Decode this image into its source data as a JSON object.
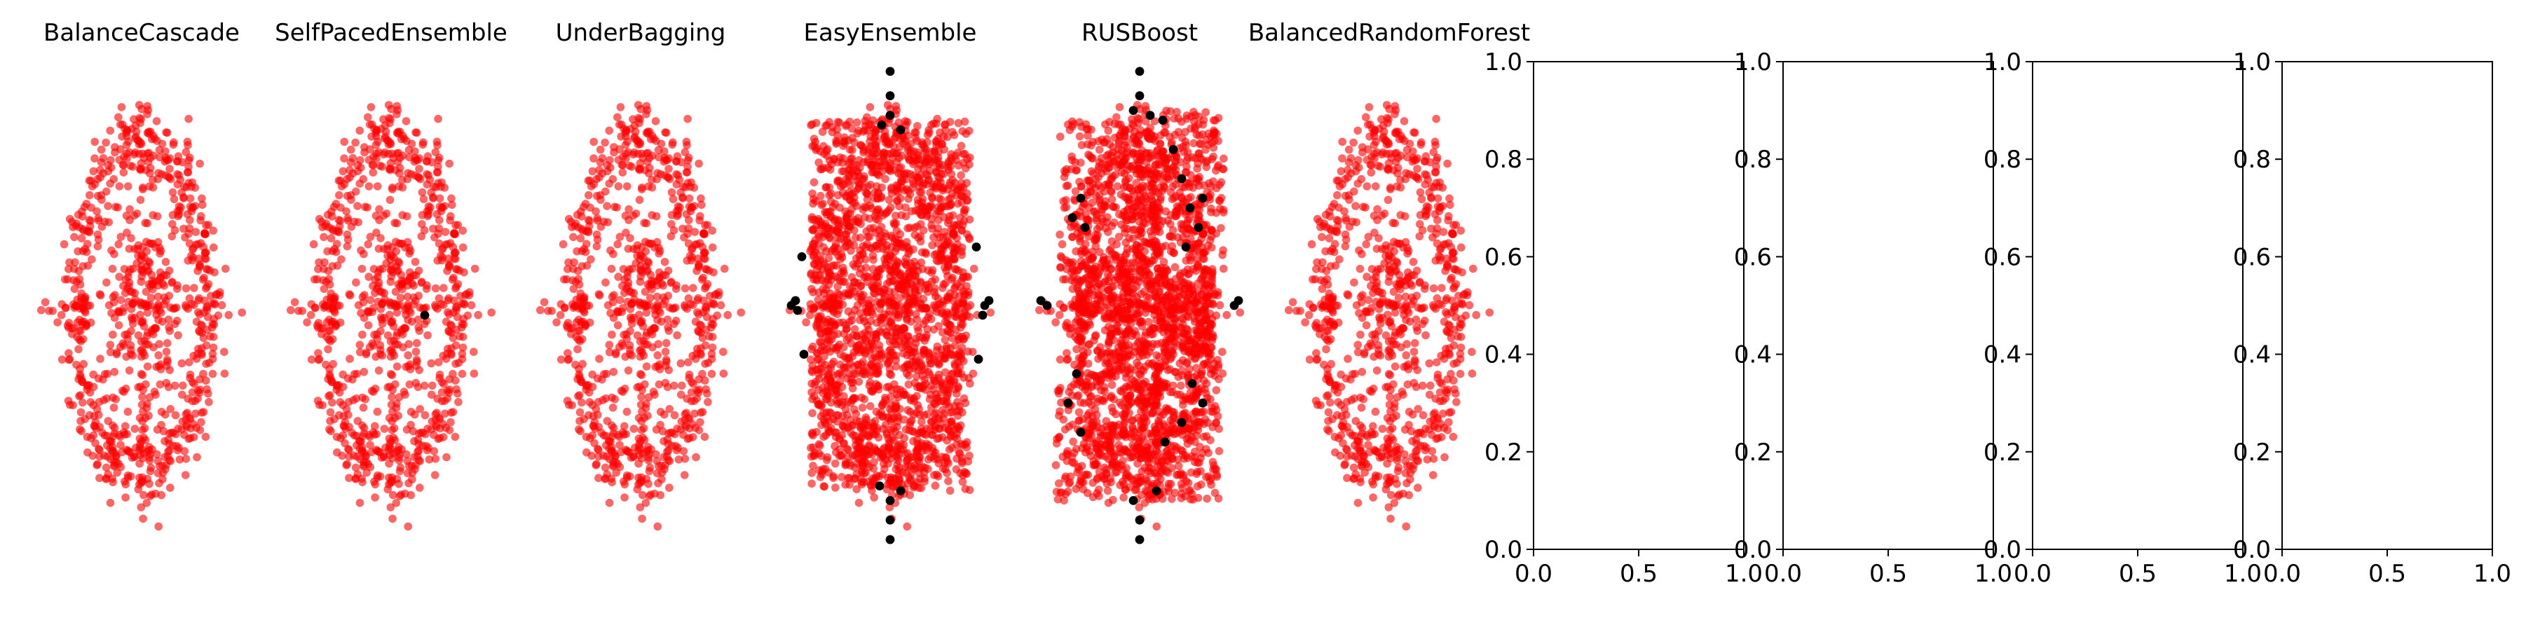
{
  "chart_data": [
    {
      "type": "scatter",
      "title": "BalanceCascade",
      "pattern": "ring",
      "series": [
        {
          "color": "#ff0000"
        }
      ]
    },
    {
      "type": "scatter",
      "title": "SelfPacedEnsemble",
      "pattern": "ring",
      "series": [
        {
          "color": "#ff0000"
        },
        {
          "color": "#000000"
        }
      ]
    },
    {
      "type": "scatter",
      "title": "UnderBagging",
      "pattern": "ring",
      "series": [
        {
          "color": "#ff0000"
        }
      ]
    },
    {
      "type": "scatter",
      "title": "EasyEnsemble",
      "pattern": "rect",
      "series": [
        {
          "color": "#ff0000"
        },
        {
          "color": "#000000"
        }
      ]
    },
    {
      "type": "scatter",
      "title": "RUSBoost",
      "pattern": "blocks",
      "series": [
        {
          "color": "#ff0000"
        },
        {
          "color": "#000000"
        }
      ]
    },
    {
      "type": "scatter",
      "title": "BalancedRandomForest",
      "pattern": "ring",
      "series": [
        {
          "color": "#ff0000"
        }
      ]
    },
    {
      "type": "scatter",
      "title": "",
      "series": [],
      "xlim": [
        0,
        1
      ],
      "ylim": [
        0,
        1
      ],
      "xticks": [
        "0.0",
        "0.5",
        "1.0"
      ],
      "yticks": [
        "0.0",
        "0.2",
        "0.4",
        "0.6",
        "0.8",
        "1.0"
      ]
    },
    {
      "type": "scatter",
      "title": "",
      "series": [],
      "xlim": [
        0,
        1
      ],
      "ylim": [
        0,
        1
      ],
      "xticks": [
        "0.0",
        "0.5",
        "1.0"
      ],
      "yticks": [
        "0.0",
        "0.2",
        "0.4",
        "0.6",
        "0.8",
        "1.0"
      ]
    },
    {
      "type": "scatter",
      "title": "",
      "series": [],
      "xlim": [
        0,
        1
      ],
      "ylim": [
        0,
        1
      ],
      "xticks": [
        "0.0",
        "0.5",
        "1.0"
      ],
      "yticks": [
        "0.0",
        "0.2",
        "0.4",
        "0.6",
        "0.8",
        "1.0"
      ]
    },
    {
      "type": "scatter",
      "title": "",
      "series": [],
      "xlim": [
        0,
        1
      ],
      "ylim": [
        0,
        1
      ],
      "xticks": [
        "0.0",
        "0.5",
        "1.0"
      ],
      "yticks": [
        "0.0",
        "0.2",
        "0.4",
        "0.6",
        "0.8",
        "1.0"
      ]
    }
  ]
}
